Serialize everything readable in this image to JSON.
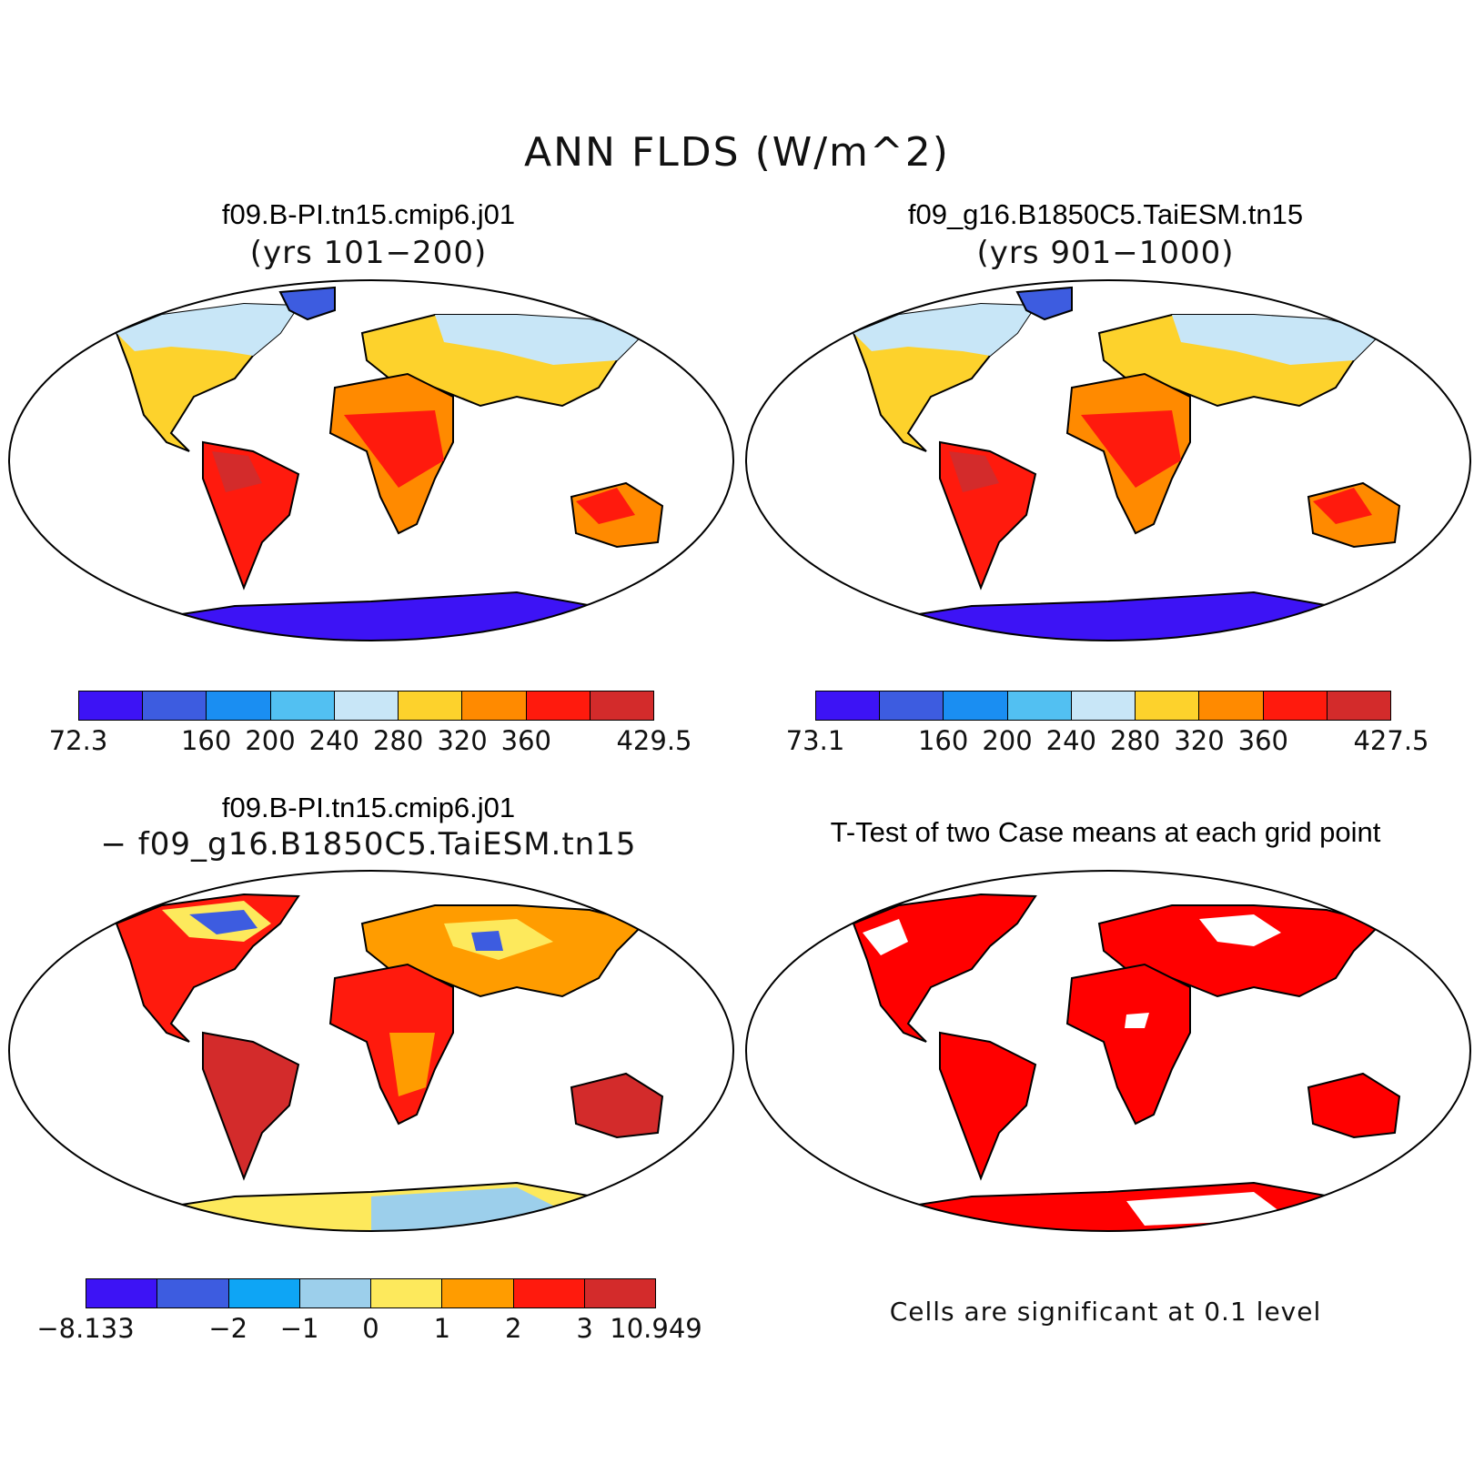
{
  "title": "ANN FLDS (W/m^2)",
  "panels": [
    {
      "title": "f09.B-PI.tn15.cmip6.j01",
      "subtitle": "(yrs 101−200)"
    },
    {
      "title": "f09_g16.B1850C5.TaiESM.tn15",
      "subtitle": "(yrs 901−1000)"
    },
    {
      "title": "f09.B-PI.tn15.cmip6.j01",
      "subtitle": "− f09_g16.B1850C5.TaiESM.tn15"
    },
    {
      "title": "T-Test of two Case means at each grid point",
      "note": "Cells are significant at 0.1 level"
    }
  ],
  "colorbars": [
    {
      "colors": [
        "#3d13f5",
        "#3d5ce0",
        "#1a8ef2",
        "#52c0f2",
        "#c8e6f7",
        "#fdd22c",
        "#ff8a00",
        "#ff1a0d",
        "#d32b2b"
      ],
      "labels": [
        "72.3",
        "",
        "160",
        "200",
        "240",
        "280",
        "320",
        "360",
        "",
        "429.5"
      ]
    },
    {
      "colors": [
        "#3d13f5",
        "#3d5ce0",
        "#1a8ef2",
        "#52c0f2",
        "#c8e6f7",
        "#fdd22c",
        "#ff8a00",
        "#ff1a0d",
        "#d32b2b"
      ],
      "labels": [
        "73.1",
        "",
        "160",
        "200",
        "240",
        "280",
        "320",
        "360",
        "",
        "427.5"
      ]
    },
    {
      "colors": [
        "#3d13f5",
        "#3d5ce0",
        "#0ea5f5",
        "#9ccfeb",
        "#fde95c",
        "#ff9c00",
        "#ff1a0d",
        "#d32b2b"
      ],
      "labels": [
        "−8.133",
        "",
        "−2",
        "−1",
        "0",
        "1",
        "2",
        "3",
        "10.949"
      ]
    }
  ]
}
